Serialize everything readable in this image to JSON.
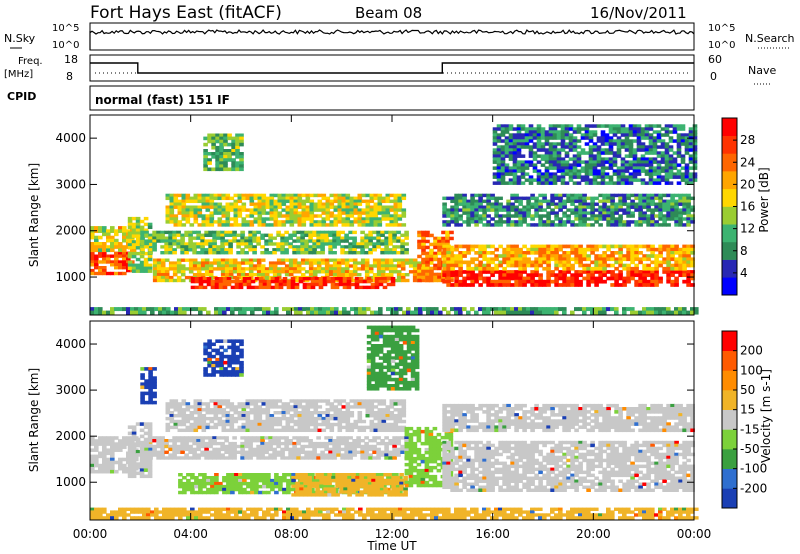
{
  "header": {
    "title": "Fort Hays East (fitACF)",
    "beam": "Beam 08",
    "date": "16/Nov/2011"
  },
  "noise_panel": {
    "left_label": "N.Sky",
    "left_ticks": [
      "10^5",
      "10^0"
    ],
    "right_ticks": [
      "10^5",
      "10^0"
    ],
    "right_label": "N.Search"
  },
  "freq_panel": {
    "left_label_line1": "Freq.",
    "left_label_line2": "[MHz]",
    "left_ticks": [
      "18",
      "8"
    ],
    "right_ticks": [
      "60",
      "0"
    ],
    "right_label": "Nave",
    "segments": [
      {
        "start_h": 0.0,
        "end_h": 1.9,
        "level": "high"
      },
      {
        "start_h": 1.9,
        "end_h": 14.0,
        "level": "low"
      },
      {
        "start_h": 14.0,
        "end_h": 24.0,
        "level": "high"
      }
    ]
  },
  "cpid": {
    "label": "CPID",
    "value": "normal (fast) 151 IF"
  },
  "x_axis": {
    "label": "Time UT",
    "ticks": [
      "00:00",
      "04:00",
      "08:00",
      "12:00",
      "16:00",
      "20:00",
      "00:00"
    ]
  },
  "chart_data": [
    {
      "type": "heatmap",
      "name": "power",
      "ylabel": "Slant Range [km]",
      "yticks": [
        "1000",
        "2000",
        "3000",
        "4000"
      ],
      "ylim": [
        180,
        4500
      ],
      "xlim_hours": [
        0,
        24
      ],
      "colorbar_label": "Power [dB]",
      "colorbar_ticks": [
        "4",
        "8",
        "12",
        "16",
        "20",
        "24",
        "28"
      ],
      "colors": [
        "#0000ff",
        "#2828b4",
        "#2e8b57",
        "#3cb371",
        "#9acd32",
        "#ffd700",
        "#ffa500",
        "#ff6600",
        "#ff3300",
        "#ff0000"
      ],
      "bands": [
        {
          "t0": 0.0,
          "t1": 1.7,
          "r0": 1050,
          "r1": 1550,
          "level": 0.85
        },
        {
          "t0": 0.0,
          "t1": 1.7,
          "r0": 1550,
          "r1": 2100,
          "level": 0.55
        },
        {
          "t0": 1.5,
          "t1": 2.3,
          "r0": 1100,
          "r1": 2300,
          "level": 0.45
        },
        {
          "t0": 2.0,
          "t1": 12.5,
          "r0": 1500,
          "r1": 2000,
          "level": 0.4
        },
        {
          "t0": 3.0,
          "t1": 12.5,
          "r0": 2100,
          "r1": 2800,
          "level": 0.5
        },
        {
          "t0": 2.5,
          "t1": 13.5,
          "r0": 900,
          "r1": 1400,
          "level": 0.6
        },
        {
          "t0": 4.0,
          "t1": 12.0,
          "r0": 750,
          "r1": 1000,
          "level": 0.9
        },
        {
          "t0": 4.5,
          "t1": 6.0,
          "r0": 3300,
          "r1": 4100,
          "level": 0.35
        },
        {
          "t0": 13.0,
          "t1": 14.3,
          "r0": 900,
          "r1": 2000,
          "level": 0.75
        },
        {
          "t0": 14.0,
          "t1": 24.0,
          "r0": 800,
          "r1": 1150,
          "level": 0.95
        },
        {
          "t0": 14.0,
          "t1": 24.0,
          "r0": 1150,
          "r1": 1700,
          "level": 0.65
        },
        {
          "t0": 14.0,
          "t1": 24.0,
          "r0": 2100,
          "r1": 2800,
          "level": 0.25
        },
        {
          "t0": 16.0,
          "t1": 24.0,
          "r0": 3000,
          "r1": 4300,
          "level": 0.2
        },
        {
          "t0": 0.0,
          "t1": 24.0,
          "r0": 200,
          "r1": 350,
          "level": 0.3
        }
      ]
    },
    {
      "type": "heatmap",
      "name": "velocity",
      "ylabel": "Slant Range [km]",
      "yticks": [
        "1000",
        "2000",
        "3000",
        "4000"
      ],
      "ylim": [
        180,
        4500
      ],
      "xlim_hours": [
        0,
        24
      ],
      "colorbar_label": "Velocity [m s-1]",
      "colorbar_ticks": [
        "200",
        "100",
        "50",
        "15",
        "-15",
        "-50",
        "-100",
        "-200"
      ],
      "colors": [
        "#1a3fb4",
        "#2f6fd0",
        "#3aa040",
        "#7cd13a",
        "#c8c8c8",
        "#f0b428",
        "#ff8c00",
        "#ff5a00",
        "#ff0000"
      ],
      "bands": [
        {
          "t0": 0.0,
          "t1": 1.8,
          "r0": 1200,
          "r1": 2000,
          "cls": 4
        },
        {
          "t0": 1.5,
          "t1": 2.3,
          "r0": 1100,
          "r1": 2300,
          "cls": 4
        },
        {
          "t0": 2.0,
          "t1": 12.5,
          "r0": 1500,
          "r1": 2000,
          "cls": 4
        },
        {
          "t0": 3.0,
          "t1": 12.5,
          "r0": 2100,
          "r1": 2800,
          "cls": 4
        },
        {
          "t0": 3.5,
          "t1": 12.3,
          "r0": 750,
          "r1": 1200,
          "cls": 3
        },
        {
          "t0": 8.0,
          "t1": 12.5,
          "r0": 700,
          "r1": 1200,
          "cls": 5
        },
        {
          "t0": 4.5,
          "t1": 6.0,
          "r0": 3300,
          "r1": 4100,
          "cls": 0
        },
        {
          "t0": 2.0,
          "t1": 2.5,
          "r0": 2700,
          "r1": 3500,
          "cls": 0
        },
        {
          "t0": 12.5,
          "t1": 14.3,
          "r0": 900,
          "r1": 2200,
          "cls": 3
        },
        {
          "t0": 11.0,
          "t1": 13.0,
          "r0": 3000,
          "r1": 4400,
          "cls": 2
        },
        {
          "t0": 14.0,
          "t1": 24.0,
          "r0": 800,
          "r1": 1900,
          "cls": 4
        },
        {
          "t0": 14.0,
          "t1": 24.0,
          "r0": 2100,
          "r1": 2700,
          "cls": 4
        },
        {
          "t0": 0.0,
          "t1": 24.0,
          "r0": 200,
          "r1": 450,
          "cls": 5
        }
      ]
    }
  ]
}
